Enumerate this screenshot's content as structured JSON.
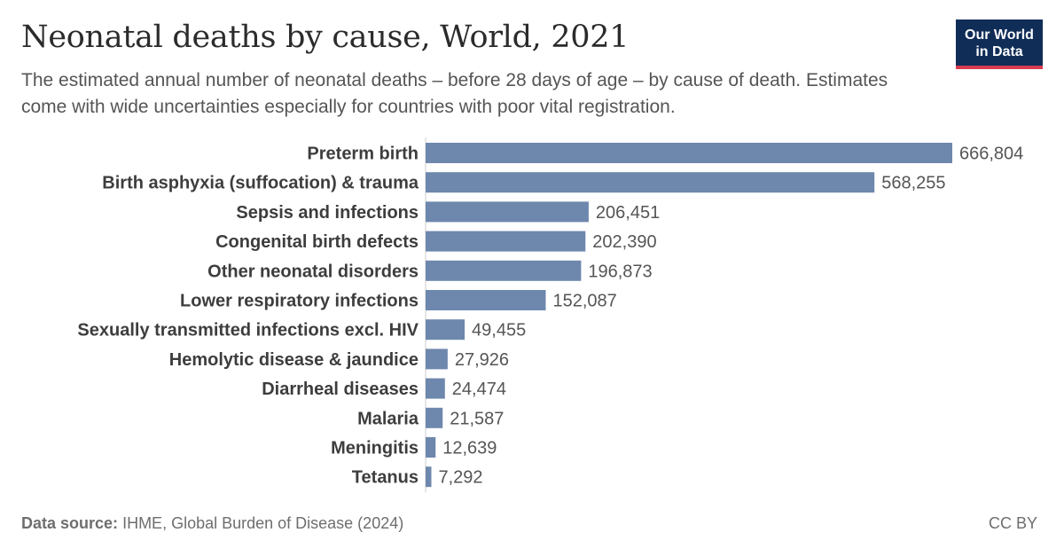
{
  "header": {
    "title": "Neonatal deaths by cause, World, 2021",
    "subtitle": "The estimated annual number of neonatal deaths – before 28 days of age – by cause of death. Estimates come with wide uncertainties especially for countries with poor vital registration.",
    "logo_line1": "Our World",
    "logo_line2": "in Data"
  },
  "footer": {
    "source_label": "Data source:",
    "source_text": "IHME, Global Burden of Disease (2024)",
    "license": "CC BY"
  },
  "colors": {
    "bar": "#6e87ad",
    "axis": "#cccccc"
  },
  "chart_data": {
    "type": "bar",
    "orientation": "horizontal",
    "categories": [
      "Preterm birth",
      "Birth asphyxia (suffocation) & trauma",
      "Sepsis and infections",
      "Congenital birth defects",
      "Other neonatal disorders",
      "Lower respiratory infections",
      "Sexually transmitted infections excl. HIV",
      "Hemolytic disease & jaundice",
      "Diarrheal diseases",
      "Malaria",
      "Meningitis",
      "Tetanus"
    ],
    "values": [
      666804,
      568255,
      206451,
      202390,
      196873,
      152087,
      49455,
      27926,
      24474,
      21587,
      12639,
      7292
    ],
    "value_labels": [
      "666,804",
      "568,255",
      "206,451",
      "202,390",
      "196,873",
      "152,087",
      "49,455",
      "27,926",
      "24,474",
      "21,587",
      "12,639",
      "7,292"
    ],
    "xlim": [
      0,
      666804
    ],
    "grid": false,
    "legend": "none"
  }
}
